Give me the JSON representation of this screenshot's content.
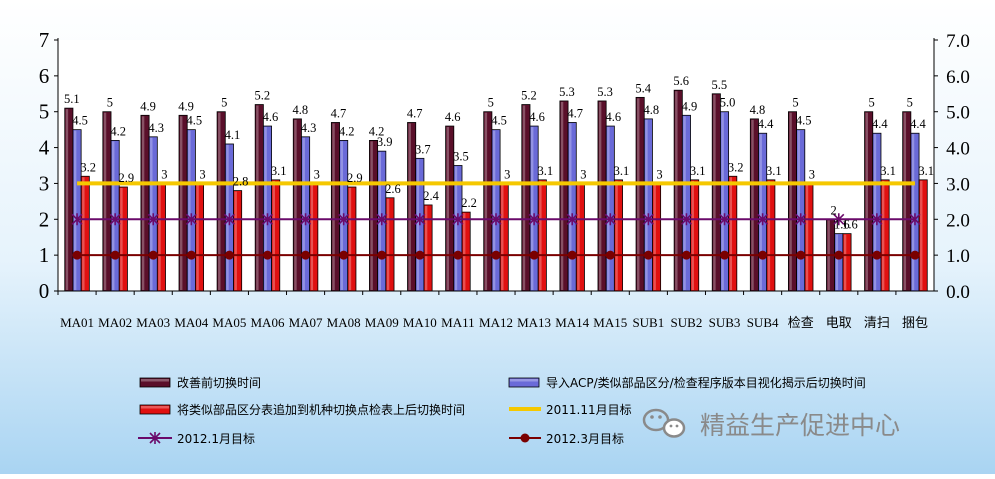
{
  "chart_data": {
    "type": "bar",
    "categories": [
      "MA01",
      "MA02",
      "MA03",
      "MA04",
      "MA05",
      "MA06",
      "MA07",
      "MA08",
      "MA09",
      "MA10",
      "MA11",
      "MA12",
      "MA13",
      "MA14",
      "MA15",
      "SUB1",
      "SUB2",
      "SUB3",
      "SUB4",
      "检查",
      "电取",
      "清扫",
      "捆包"
    ],
    "series": [
      {
        "name": "改善前切换时间",
        "color": "#5a0f2a",
        "values": [
          5.1,
          5,
          4.9,
          4.9,
          5,
          5.2,
          4.8,
          4.7,
          4.2,
          4.7,
          4.6,
          5,
          5.2,
          5.3,
          5.3,
          5.4,
          5.6,
          5.5,
          4.8,
          5,
          2,
          5,
          5
        ]
      },
      {
        "name": "导入ACP/类似部品区分/检查程序版本目视化揭示后切换时间",
        "color": "#6a6ad8",
        "values": [
          4.5,
          4.2,
          4.3,
          4.5,
          4.1,
          4.6,
          4.3,
          4.2,
          3.9,
          3.7,
          3.5,
          4.5,
          4.6,
          4.7,
          4.6,
          4.8,
          4.9,
          5.0,
          4.4,
          4.5,
          1.6,
          4.4,
          4.4
        ]
      },
      {
        "name": "将类似部品区分表追加到机种切换点检表上后切换时间",
        "color": "#e01010",
        "values": [
          3.2,
          2.9,
          3,
          3,
          2.8,
          3.1,
          3,
          2.9,
          2.6,
          2.4,
          2.2,
          3,
          3.1,
          3,
          3.1,
          3,
          3.1,
          3.2,
          3.1,
          3,
          1.6,
          3.1,
          3.1
        ]
      }
    ],
    "value_labels": [
      [
        "5.1",
        "5",
        "4.9",
        "4.9",
        "5",
        "5.2",
        "4.8",
        "4.7",
        "4.2",
        "4.7",
        "4.6",
        "5",
        "5.2",
        "5.3",
        "5.3",
        "5.4",
        "5.6",
        "5.5",
        "4.8",
        "5",
        "2",
        "5",
        "5"
      ],
      [
        "4.5",
        "4.2",
        "4.3",
        "4.5",
        "4.1",
        "4.6",
        "4.3",
        "4.2",
        "3.9",
        "3.7",
        "3.5",
        "4.5",
        "4.6",
        "4.7",
        "4.6",
        "4.8",
        "4.9",
        "5.0",
        "4.4",
        "4.5",
        "1.6",
        "4.4",
        "4.4"
      ],
      [
        "3.2",
        "2.9",
        "3",
        "3",
        "2.8",
        "3.1",
        "3",
        "2.9",
        "2.6",
        "2.4",
        "2.2",
        "3",
        "3.1",
        "3",
        "3.1",
        "3",
        "3.1",
        "3.2",
        "3.1",
        "3",
        "1.6",
        "3.1",
        "3.1"
      ]
    ],
    "target_lines": [
      {
        "name": "2011.11月目标",
        "value": 3,
        "color": "#f5c800"
      },
      {
        "name": "2012.1月目标",
        "value": 2,
        "color": "#6a0a6a",
        "marker": "star"
      },
      {
        "name": "2012.3月目标",
        "value": 1,
        "color": "#7a0000",
        "marker": "circle"
      }
    ],
    "ylim": [
      0,
      7
    ],
    "y_ticks_left": [
      "0",
      "1",
      "2",
      "3",
      "4",
      "5",
      "6",
      "7"
    ],
    "y_ticks_right": [
      "0.0",
      "1.0",
      "2.0",
      "3.0",
      "4.0",
      "5.0",
      "6.0",
      "7.0"
    ],
    "grid": false,
    "legend_position": "bottom",
    "colors": {
      "plot_bg": "#ffffff",
      "page_top": "#ffffff",
      "page_bottom": "#a9d4f2",
      "axis": "#000000"
    }
  },
  "watermark": "精益生产促进中心"
}
